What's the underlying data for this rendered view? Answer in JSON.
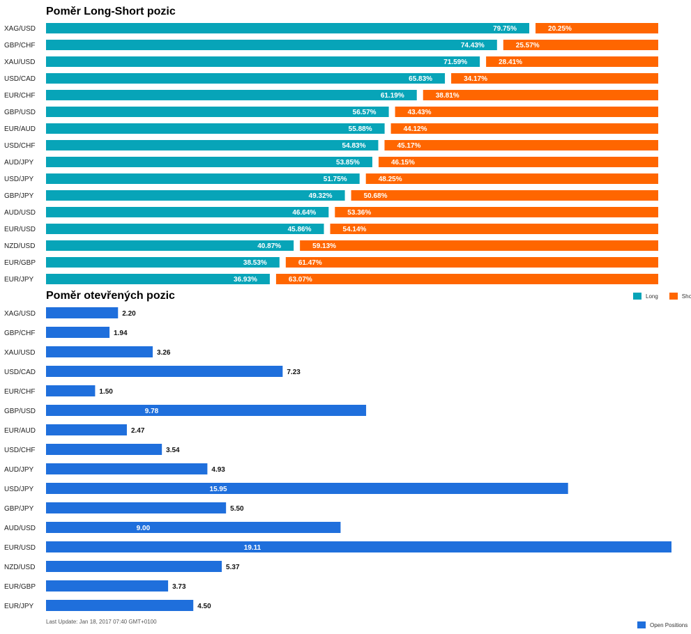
{
  "colors": {
    "long": "#07a4b8",
    "short": "#ff6600",
    "open": "#1f6fdc"
  },
  "chart_data": [
    {
      "type": "bar",
      "orientation": "horizontal",
      "stacked": true,
      "title": "Poměr Long-Short pozic",
      "categories": [
        "XAG/USD",
        "GBP/CHF",
        "XAU/USD",
        "USD/CAD",
        "EUR/CHF",
        "GBP/USD",
        "EUR/AUD",
        "USD/CHF",
        "AUD/JPY",
        "USD/JPY",
        "GBP/JPY",
        "AUD/USD",
        "EUR/USD",
        "NZD/USD",
        "EUR/GBP",
        "EUR/JPY"
      ],
      "series": [
        {
          "name": "Long",
          "values": [
            79.75,
            74.43,
            71.59,
            65.83,
            61.19,
            56.57,
            55.88,
            54.83,
            53.85,
            51.75,
            49.32,
            46.64,
            45.86,
            40.87,
            38.53,
            36.93
          ],
          "labels": [
            "79.75%",
            "74.43%",
            "71.59%",
            "65.83%",
            "61.19%",
            "56.57%",
            "55.88%",
            "54.83%",
            "53.85%",
            "51.75%",
            "49.32%",
            "46.64%",
            "45.86%",
            "40.87%",
            "38.53%",
            "36.93%"
          ]
        },
        {
          "name": "Short",
          "values": [
            20.25,
            25.57,
            28.41,
            34.17,
            38.81,
            43.43,
            44.12,
            45.17,
            46.15,
            48.25,
            50.68,
            53.36,
            54.14,
            59.13,
            61.47,
            63.07
          ],
          "labels": [
            "20.25%",
            "25.57%",
            "28.41%",
            "34.17%",
            "38.81%",
            "43.43%",
            "44.12%",
            "45.17%",
            "46.15%",
            "48.25%",
            "50.68%",
            "53.36%",
            "54.14%",
            "59.13%",
            "61.47%",
            "63.07%"
          ]
        }
      ],
      "legend": {
        "position": "bottom-right",
        "items": [
          "Long",
          "Short"
        ]
      }
    },
    {
      "type": "bar",
      "orientation": "horizontal",
      "title": "Poměr otevřených pozic",
      "categories": [
        "XAG/USD",
        "GBP/CHF",
        "XAU/USD",
        "USD/CAD",
        "EUR/CHF",
        "GBP/USD",
        "EUR/AUD",
        "USD/CHF",
        "AUD/JPY",
        "USD/JPY",
        "GBP/JPY",
        "AUD/USD",
        "EUR/USD",
        "NZD/USD",
        "EUR/GBP",
        "EUR/JPY"
      ],
      "series": [
        {
          "name": "Open Positions",
          "values": [
            2.2,
            1.94,
            3.26,
            7.23,
            1.5,
            9.78,
            2.47,
            3.54,
            4.93,
            15.95,
            5.5,
            9.0,
            19.11,
            5.37,
            3.73,
            4.5
          ],
          "labels": [
            "2.20",
            "1.94",
            "3.26",
            "7.23",
            "1.50",
            "9.78",
            "2.47",
            "3.54",
            "4.93",
            "15.95",
            "5.50",
            "9.00",
            "19.11",
            "5.37",
            "3.73",
            "4.50"
          ]
        }
      ],
      "xlim": [
        0,
        19.11
      ],
      "legend": {
        "position": "bottom-right",
        "items": [
          "Open Positions"
        ]
      }
    }
  ],
  "footer": {
    "last_update": "Last Update: Jan 18, 2017 07:40 GMT+0100"
  }
}
